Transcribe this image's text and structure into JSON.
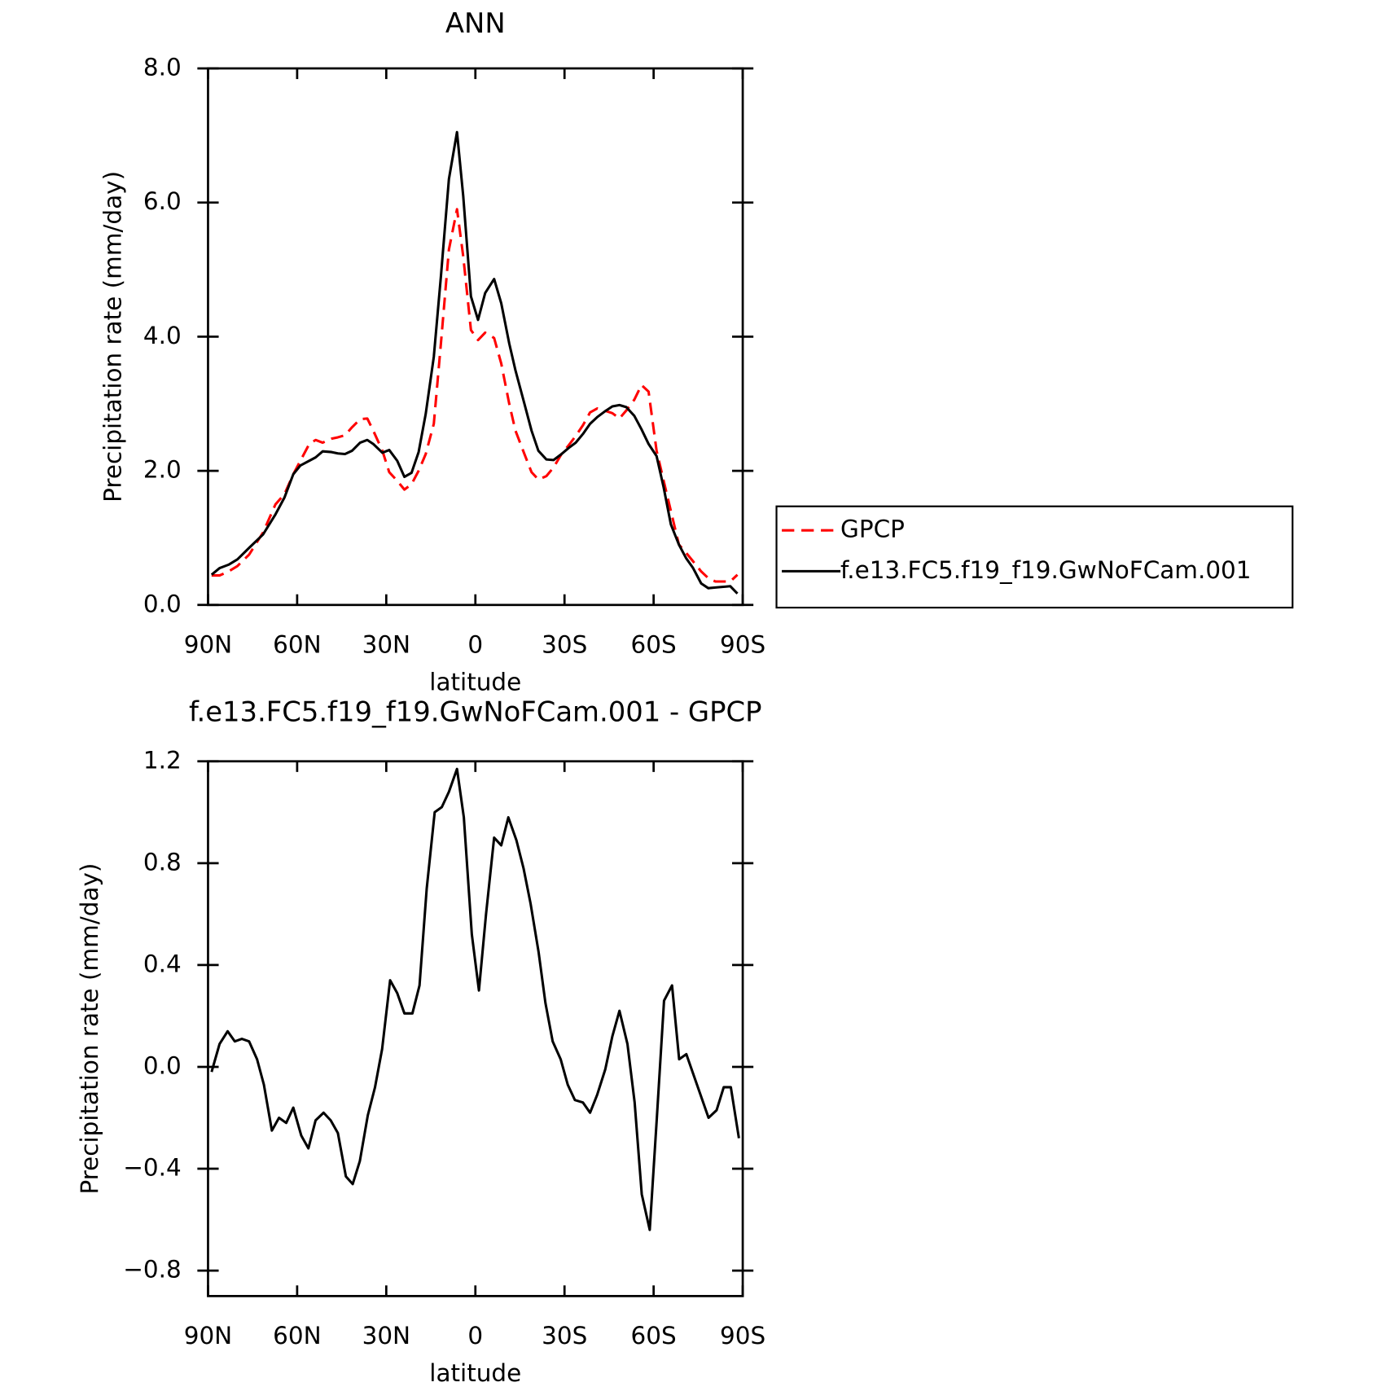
{
  "chart_data": [
    {
      "type": "line",
      "title": "ANN",
      "x_label": "latitude",
      "y_label": "Precipitation rate (mm/day)",
      "x": [
        88.8,
        86.1,
        83.1,
        80.1,
        76.2,
        71.5,
        67.3,
        64.3,
        61.3,
        58.9,
        55.9,
        53.8,
        51.4,
        48.4,
        46.3,
        43.9,
        41.5,
        38.8,
        36.4,
        34.4,
        31.3,
        29.0,
        26.3,
        23.9,
        21.5,
        19.1,
        16.7,
        14.0,
        11.6,
        8.9,
        6.2,
        4.1,
        1.5,
        -0.9,
        -3.3,
        -6.3,
        -8.7,
        -11.4,
        -13.5,
        -16.5,
        -18.9,
        -21.2,
        -23.9,
        -26.3,
        -29.0,
        -31.4,
        -33.8,
        -36.2,
        -38.6,
        -41.0,
        -43.4,
        -46.1,
        -48.5,
        -50.8,
        -53.5,
        -55.9,
        -58.3,
        -61.0,
        -63.4,
        -65.8,
        -68.5,
        -70.9,
        -73.3,
        -76.0,
        -78.4,
        -80.8,
        -85.8,
        -88.2
      ],
      "series": [
        {
          "name": "GPCP",
          "color": "#ff0000",
          "style": "dashed",
          "values": [
            0.44,
            0.44,
            0.5,
            0.58,
            0.75,
            1.08,
            1.5,
            1.65,
            1.95,
            2.15,
            2.4,
            2.46,
            2.42,
            2.48,
            2.5,
            2.53,
            2.65,
            2.77,
            2.78,
            2.6,
            2.3,
            1.98,
            1.85,
            1.72,
            1.8,
            2.0,
            2.25,
            2.7,
            3.9,
            5.3,
            5.9,
            5.2,
            4.1,
            3.95,
            4.06,
            3.98,
            3.6,
            3.0,
            2.6,
            2.25,
            1.98,
            1.87,
            1.92,
            2.05,
            2.25,
            2.38,
            2.52,
            2.68,
            2.87,
            2.93,
            2.9,
            2.86,
            2.78,
            2.9,
            3.06,
            3.28,
            3.18,
            2.3,
            1.85,
            1.4,
            0.9,
            0.78,
            0.65,
            0.5,
            0.4,
            0.35,
            0.35,
            0.45
          ]
        },
        {
          "name": "f.e13.FC5.f19_f19.GwNoFCam.001",
          "color": "#000000",
          "style": "solid",
          "values": [
            0.45,
            0.55,
            0.6,
            0.68,
            0.85,
            1.05,
            1.35,
            1.6,
            1.95,
            2.08,
            2.15,
            2.2,
            2.29,
            2.28,
            2.26,
            2.25,
            2.3,
            2.42,
            2.46,
            2.4,
            2.27,
            2.31,
            2.15,
            1.91,
            1.97,
            2.28,
            2.85,
            3.7,
            4.9,
            6.35,
            7.05,
            6.1,
            4.6,
            4.25,
            4.65,
            4.86,
            4.5,
            3.9,
            3.5,
            3.0,
            2.6,
            2.3,
            2.17,
            2.16,
            2.25,
            2.34,
            2.42,
            2.55,
            2.7,
            2.8,
            2.88,
            2.96,
            2.98,
            2.95,
            2.82,
            2.62,
            2.4,
            2.22,
            1.75,
            1.2,
            0.9,
            0.7,
            0.55,
            0.32,
            0.25,
            0.26,
            0.28,
            0.17
          ]
        }
      ],
      "xlim": [
        90,
        -90
      ],
      "xticks": [
        {
          "value": 90,
          "label": "90N"
        },
        {
          "value": 60,
          "label": "60N"
        },
        {
          "value": 30,
          "label": "30N"
        },
        0,
        {
          "value": -30,
          "label": "30S"
        },
        {
          "value": -60,
          "label": "60S"
        },
        {
          "value": -90,
          "label": "90S"
        }
      ],
      "ylim": [
        0,
        8
      ],
      "yticks": [
        {
          "value": 0,
          "label": "0.0"
        },
        {
          "value": 2,
          "label": "2.0"
        },
        {
          "value": 4,
          "label": "4.0"
        },
        {
          "value": 6,
          "label": "6.0"
        },
        {
          "value": 8,
          "label": "8.0"
        }
      ],
      "legend": "right",
      "grid": false
    },
    {
      "type": "line",
      "title": "f.e13.FC5.f19_f19.GwNoFCam.001 - GPCP",
      "x_label": "latitude",
      "y_label": "Precipitation rate (mm/day)",
      "x": [
        88.8,
        86.1,
        83.4,
        81.0,
        78.6,
        76.2,
        73.5,
        71.2,
        68.5,
        66.1,
        63.7,
        61.3,
        58.6,
        56.2,
        53.8,
        51.1,
        48.7,
        46.3,
        43.6,
        41.3,
        38.9,
        36.2,
        33.8,
        31.4,
        28.7,
        26.3,
        23.9,
        21.2,
        18.8,
        16.4,
        13.7,
        11.3,
        8.9,
        6.2,
        3.9,
        1.2,
        -1.2,
        -3.6,
        -6.3,
        -8.7,
        -11.1,
        -13.8,
        -16.2,
        -18.6,
        -21.3,
        -23.6,
        -26.0,
        -28.7,
        -31.1,
        -33.5,
        -36.2,
        -38.6,
        -41.0,
        -43.7,
        -46.1,
        -48.5,
        -51.2,
        -53.6,
        -56.0,
        -58.7,
        -61.1,
        -63.5,
        -66.2,
        -68.6,
        -71.0,
        -73.7,
        -76.1,
        -78.5,
        -81.2,
        -83.6,
        -86.0,
        -88.7
      ],
      "values": [
        -0.02,
        0.09,
        0.14,
        0.1,
        0.11,
        0.1,
        0.03,
        -0.07,
        -0.25,
        -0.2,
        -0.22,
        -0.16,
        -0.27,
        -0.32,
        -0.21,
        -0.18,
        -0.21,
        -0.26,
        -0.43,
        -0.46,
        -0.37,
        -0.19,
        -0.08,
        0.07,
        0.34,
        0.29,
        0.21,
        0.21,
        0.32,
        0.7,
        1.0,
        1.02,
        1.08,
        1.17,
        0.98,
        0.52,
        0.3,
        0.6,
        0.9,
        0.87,
        0.98,
        0.89,
        0.78,
        0.64,
        0.45,
        0.25,
        0.1,
        0.03,
        -0.07,
        -0.13,
        -0.14,
        -0.18,
        -0.11,
        -0.01,
        0.12,
        0.22,
        0.09,
        -0.14,
        -0.5,
        -0.64,
        -0.2,
        0.26,
        0.32,
        0.03,
        0.05,
        -0.04,
        -0.12,
        -0.2,
        -0.17,
        -0.08,
        -0.08,
        -0.28
      ],
      "color": "#000000",
      "xlim": [
        90,
        -90
      ],
      "xticks": [
        {
          "value": 90,
          "label": "90N"
        },
        {
          "value": 60,
          "label": "60N"
        },
        {
          "value": 30,
          "label": "30N"
        },
        0,
        {
          "value": -30,
          "label": "30S"
        },
        {
          "value": -60,
          "label": "60S"
        },
        {
          "value": -90,
          "label": "90S"
        }
      ],
      "ylim": [
        -0.9,
        1.2
      ],
      "yticks": [
        {
          "value": -0.8,
          "label": "−0.8"
        },
        {
          "value": -0.4,
          "label": "−0.4"
        },
        {
          "value": 0,
          "label": "0.0"
        },
        {
          "value": 0.4,
          "label": "0.4"
        },
        {
          "value": 0.8,
          "label": "0.8"
        },
        {
          "value": 1.2,
          "label": "1.2"
        }
      ],
      "grid": false
    }
  ]
}
